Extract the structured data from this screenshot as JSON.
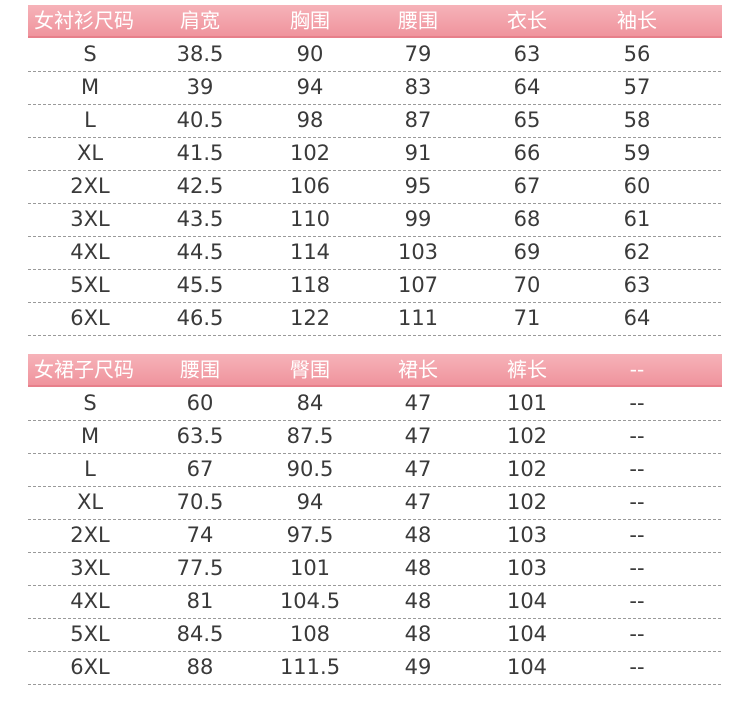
{
  "tables": [
    {
      "header": [
        "女衬衫尺码",
        "肩宽",
        "胸围",
        "腰围",
        "衣长",
        "袖长"
      ],
      "rows": [
        [
          "S",
          "38.5",
          "90",
          "79",
          "63",
          "56"
        ],
        [
          "M",
          "39",
          "94",
          "83",
          "64",
          "57"
        ],
        [
          "L",
          "40.5",
          "98",
          "87",
          "65",
          "58"
        ],
        [
          "XL",
          "41.5",
          "102",
          "91",
          "66",
          "59"
        ],
        [
          "2XL",
          "42.5",
          "106",
          "95",
          "67",
          "60"
        ],
        [
          "3XL",
          "43.5",
          "110",
          "99",
          "68",
          "61"
        ],
        [
          "4XL",
          "44.5",
          "114",
          "103",
          "69",
          "62"
        ],
        [
          "5XL",
          "45.5",
          "118",
          "107",
          "70",
          "63"
        ],
        [
          "6XL",
          "46.5",
          "122",
          "111",
          "71",
          "64"
        ]
      ]
    },
    {
      "header": [
        "女裙子尺码",
        "腰围",
        "臀围",
        "裙长",
        "裤长",
        "--"
      ],
      "rows": [
        [
          "S",
          "60",
          "84",
          "47",
          "101",
          "--"
        ],
        [
          "M",
          "63.5",
          "87.5",
          "47",
          "102",
          "--"
        ],
        [
          "L",
          "67",
          "90.5",
          "47",
          "102",
          "--"
        ],
        [
          "XL",
          "70.5",
          "94",
          "47",
          "102",
          "--"
        ],
        [
          "2XL",
          "74",
          "97.5",
          "48",
          "103",
          "--"
        ],
        [
          "3XL",
          "77.5",
          "101",
          "48",
          "103",
          "--"
        ],
        [
          "4XL",
          "81",
          "104.5",
          "48",
          "104",
          "--"
        ],
        [
          "5XL",
          "84.5",
          "108",
          "48",
          "104",
          "--"
        ],
        [
          "6XL",
          "88",
          "111.5",
          "49",
          "104",
          "--"
        ]
      ]
    }
  ]
}
